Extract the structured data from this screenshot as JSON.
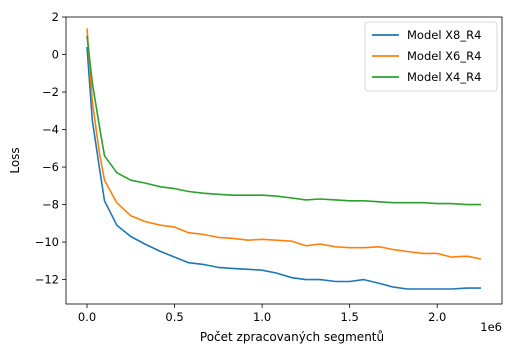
{
  "chart_data": {
    "type": "line",
    "xlabel": "Počet zpracovaných segmentů",
    "ylabel": "Loss",
    "x_offset_label": "1e6",
    "xlim": [
      -0.12,
      2.37
    ],
    "ylim": [
      -13.3,
      2.0
    ],
    "xticks": [
      0.0,
      0.5,
      1.0,
      1.5,
      2.0
    ],
    "xtick_labels": [
      "0.0",
      "0.5",
      "1.0",
      "1.5",
      "2.0"
    ],
    "yticks": [
      2,
      0,
      -2,
      -4,
      -6,
      -8,
      -10,
      -12
    ],
    "ytick_labels": [
      "2",
      "0",
      "−2",
      "−4",
      "−6",
      "−8",
      "−10",
      "−12"
    ],
    "grid": false,
    "legend_position": "upper right",
    "series": [
      {
        "name": "Model X8_R4",
        "color": "#1f77b4",
        "x": [
          0.0,
          0.03,
          0.07,
          0.1,
          0.17,
          0.25,
          0.33,
          0.42,
          0.5,
          0.58,
          0.67,
          0.75,
          0.83,
          0.92,
          1.0,
          1.08,
          1.17,
          1.25,
          1.33,
          1.42,
          1.5,
          1.58,
          1.67,
          1.75,
          1.83,
          1.92,
          2.0,
          2.08,
          2.17,
          2.25
        ],
        "y": [
          0.4,
          -3.5,
          -6.0,
          -7.8,
          -9.1,
          -9.7,
          -10.1,
          -10.5,
          -10.8,
          -11.1,
          -11.2,
          -11.35,
          -11.4,
          -11.45,
          -11.5,
          -11.65,
          -11.9,
          -12.0,
          -12.0,
          -12.1,
          -12.1,
          -12.0,
          -12.2,
          -12.4,
          -12.5,
          -12.5,
          -12.5,
          -12.5,
          -12.45,
          -12.45
        ]
      },
      {
        "name": "Model X6_R4",
        "color": "#ff7f0e",
        "x": [
          0.0,
          0.03,
          0.07,
          0.1,
          0.17,
          0.25,
          0.33,
          0.42,
          0.5,
          0.58,
          0.67,
          0.75,
          0.83,
          0.92,
          1.0,
          1.08,
          1.17,
          1.25,
          1.33,
          1.42,
          1.5,
          1.58,
          1.67,
          1.75,
          1.83,
          1.92,
          2.0,
          2.08,
          2.17,
          2.25
        ],
        "y": [
          1.4,
          -2.5,
          -5.2,
          -6.7,
          -7.9,
          -8.6,
          -8.9,
          -9.1,
          -9.2,
          -9.5,
          -9.6,
          -9.75,
          -9.8,
          -9.9,
          -9.85,
          -9.9,
          -9.95,
          -10.2,
          -10.1,
          -10.25,
          -10.3,
          -10.3,
          -10.25,
          -10.4,
          -10.5,
          -10.6,
          -10.6,
          -10.8,
          -10.75,
          -10.9
        ]
      },
      {
        "name": "Model X4_R4",
        "color": "#2ca02c",
        "x": [
          0.0,
          0.03,
          0.07,
          0.1,
          0.17,
          0.25,
          0.33,
          0.42,
          0.5,
          0.58,
          0.67,
          0.75,
          0.83,
          0.92,
          1.0,
          1.08,
          1.17,
          1.25,
          1.33,
          1.42,
          1.5,
          1.58,
          1.67,
          1.75,
          1.83,
          1.92,
          2.0,
          2.08,
          2.17,
          2.25
        ],
        "y": [
          1.0,
          -1.5,
          -3.8,
          -5.4,
          -6.3,
          -6.7,
          -6.85,
          -7.05,
          -7.15,
          -7.3,
          -7.4,
          -7.45,
          -7.5,
          -7.5,
          -7.5,
          -7.55,
          -7.65,
          -7.75,
          -7.7,
          -7.75,
          -7.8,
          -7.8,
          -7.85,
          -7.9,
          -7.9,
          -7.9,
          -7.95,
          -7.95,
          -8.0,
          -8.0
        ]
      }
    ]
  }
}
